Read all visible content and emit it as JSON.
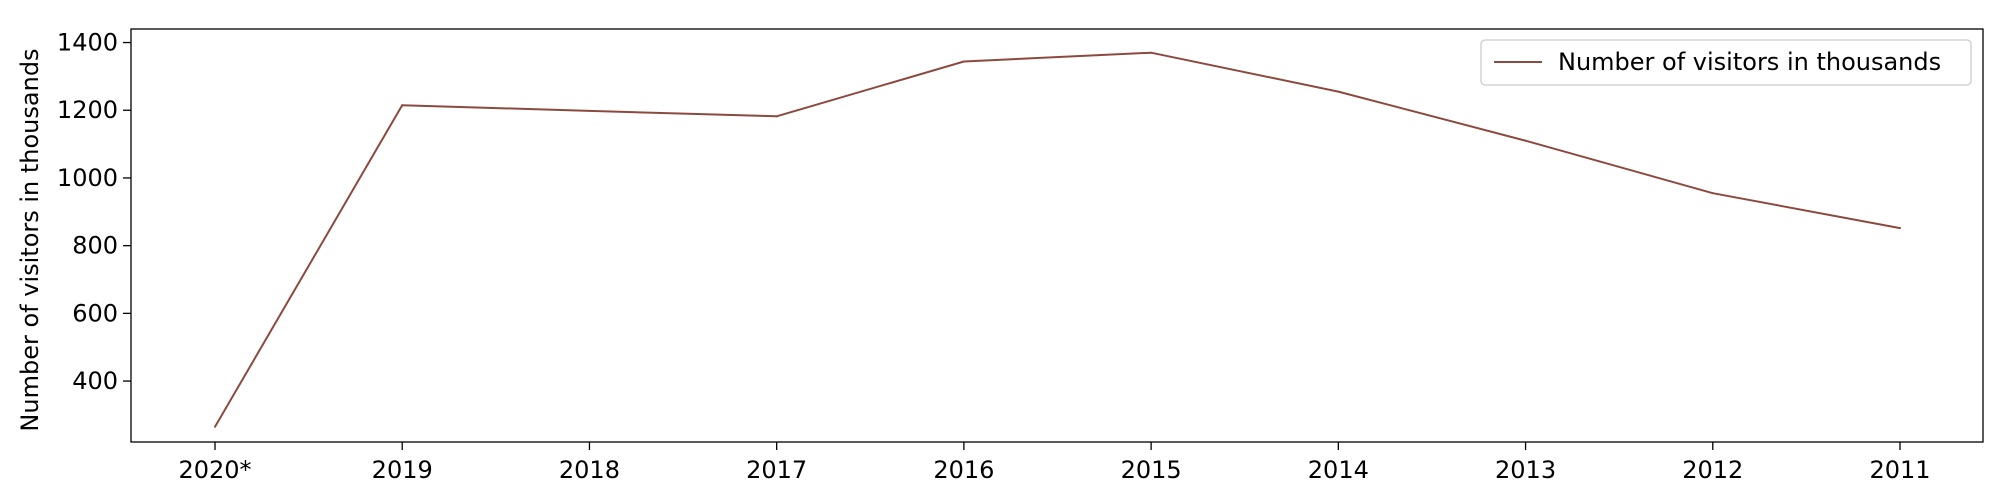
{
  "chart_data": {
    "type": "line",
    "title": "",
    "xlabel": "",
    "ylabel": "Number of visitors in thousands",
    "categories": [
      "2020*",
      "2019",
      "2018",
      "2017",
      "2016",
      "2015",
      "2014",
      "2013",
      "2012",
      "2011"
    ],
    "series": [
      {
        "name": "Number of visitors in thousands",
        "color": "#8c4a3f",
        "values": [
          265,
          1215,
          1198,
          1182,
          1344,
          1370,
          1255,
          1110,
          955,
          852
        ]
      }
    ],
    "yticks": [
      400,
      600,
      800,
      1000,
      1200,
      1400
    ],
    "ylim": [
      220,
      1440
    ],
    "grid": false,
    "legend": "top-right"
  }
}
